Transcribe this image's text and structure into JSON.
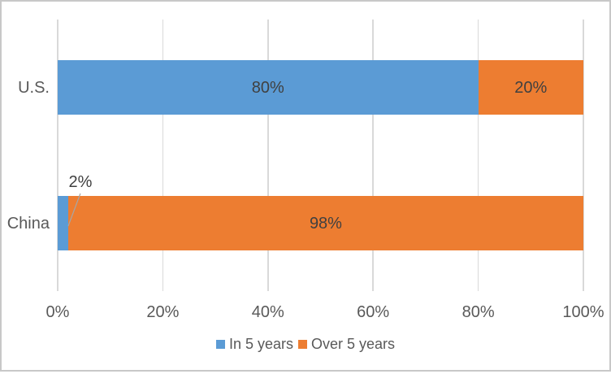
{
  "chart": {
    "background": "#FFFFFF",
    "frame_border_color": "#C8C8C8"
  },
  "chart_data": {
    "type": "bar",
    "orientation": "horizontal",
    "stacked": true,
    "title": "",
    "categories": [
      "U.S.",
      "China"
    ],
    "series": [
      {
        "name": "In 5 years",
        "color": "#5B9BD5",
        "values": [
          80,
          2
        ],
        "data_labels": [
          "80%",
          "2%"
        ]
      },
      {
        "name": "Over 5 years",
        "color": "#ED7D31",
        "values": [
          20,
          98
        ],
        "data_labels": [
          "20%",
          "98%"
        ]
      }
    ],
    "x_axis": {
      "min": 0,
      "max": 100,
      "ticks": [
        0,
        20,
        40,
        60,
        80,
        100
      ],
      "tick_labels": [
        "0%",
        "20%",
        "40%",
        "60%",
        "80%",
        "100%"
      ]
    },
    "grid": "vertical",
    "gridline_color": "#D9D9D9",
    "legend": {
      "position": "bottom",
      "entries": [
        {
          "label": "In 5 years",
          "color": "#5B9BD5"
        },
        {
          "label": "Over 5 years",
          "color": "#ED7D31"
        }
      ]
    },
    "text_colors": {
      "axis": "#595959",
      "data_label": "#404040"
    },
    "callout": {
      "series": "In 5 years",
      "category": "China",
      "label": "2%",
      "leader_line_color": "#A6A6A6"
    }
  }
}
